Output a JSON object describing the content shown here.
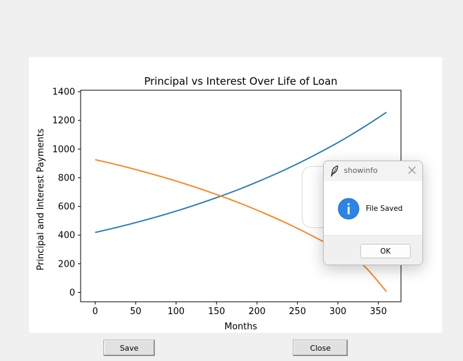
{
  "buttons": {
    "save_label": "Save",
    "close_label": "Close"
  },
  "dialog": {
    "title": "showinfo",
    "message": "File Saved",
    "ok_label": "OK",
    "icon": "info-icon"
  },
  "colors": {
    "principal_line": "#1f77b4",
    "interest_line": "#ff7f0e",
    "info_icon": "#1a73d8"
  },
  "chart_data": {
    "type": "line",
    "title": "Principal vs Interest Over Life of Loan",
    "xlabel": "Months",
    "ylabel": "Principal and Interest Payments",
    "xlim": [
      -18,
      378
    ],
    "ylim": [
      -65,
      1410
    ],
    "xticks": [
      0,
      50,
      100,
      150,
      200,
      250,
      300,
      350
    ],
    "yticks": [
      0,
      200,
      400,
      600,
      800,
      1000,
      1200,
      1400
    ],
    "grid": false,
    "series": [
      {
        "color": "#1f77b4",
        "x": [
          0,
          30,
          60,
          90,
          120,
          150,
          180,
          210,
          240,
          270,
          300,
          330,
          360
        ],
        "values": [
          418,
          458,
          502,
          550,
          603,
          661,
          724,
          794,
          870,
          954,
          1045,
          1146,
          1256
        ]
      },
      {
        "color": "#ff7f0e",
        "x": [
          0,
          30,
          60,
          90,
          120,
          150,
          180,
          210,
          240,
          270,
          300,
          330,
          360
        ],
        "values": [
          926,
          886,
          842,
          794,
          741,
          683,
          620,
          550,
          474,
          390,
          299,
          198,
          6
        ]
      }
    ]
  }
}
